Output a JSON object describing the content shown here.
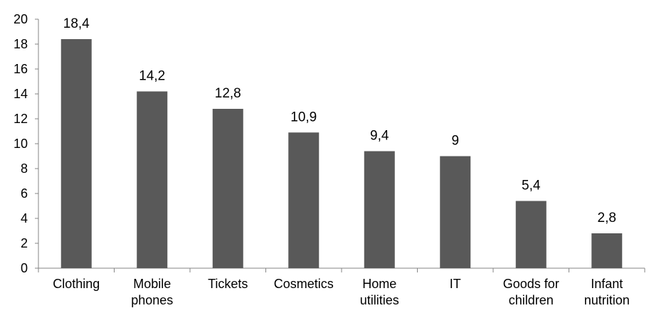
{
  "chart_data": {
    "type": "bar",
    "categories": [
      [
        "Clothing"
      ],
      [
        "Mobile",
        "phones"
      ],
      [
        "Tickets"
      ],
      [
        "Cosmetics"
      ],
      [
        "Home",
        "utilities"
      ],
      [
        "IT"
      ],
      [
        "Goods for",
        "children"
      ],
      [
        "Infant",
        "nutrition"
      ]
    ],
    "values": [
      18.4,
      14.2,
      12.8,
      10.9,
      9.4,
      9,
      5.4,
      2.8
    ],
    "data_labels": [
      "18,4",
      "14,2",
      "12,8",
      "10,9",
      "9,4",
      "9",
      "5,4",
      "2,8"
    ],
    "y_ticks": [
      "0",
      "2",
      "4",
      "6",
      "8",
      "10",
      "12",
      "14",
      "16",
      "18",
      "20"
    ],
    "ylim": [
      0,
      20
    ],
    "grid": false,
    "bar_color": "#595959",
    "axis_color": "#868686",
    "text_color": "#000000"
  }
}
